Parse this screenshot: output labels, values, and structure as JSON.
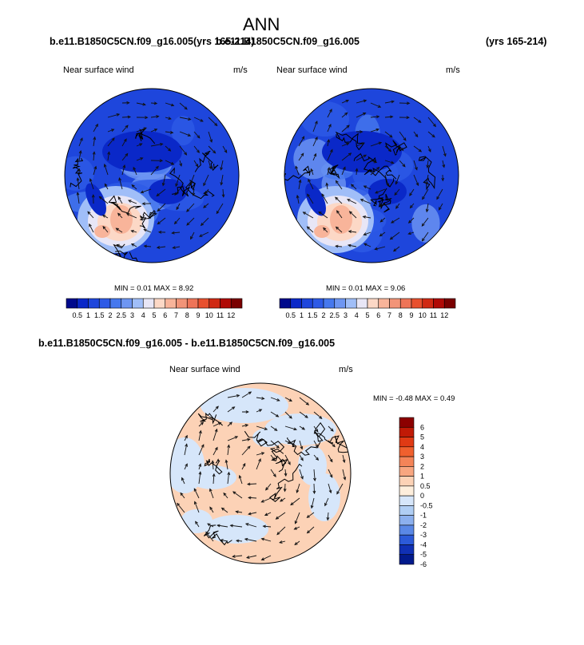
{
  "page": {
    "title": "ANN",
    "case1_label": "b.e11.B1850C5CN.f09_g16.005",
    "case1_years": "(yrs 165-214)",
    "case2_label": "b.e11.B1850C5CN.f09_g16.005",
    "case2_years": "(yrs 165-214)",
    "diff_label": "b.e11.B1850C5CN.f09_g16.005 - b.e11.B1850C5CN.f09_g16.005"
  },
  "chart_data": [
    {
      "type": "polar-contour-map",
      "field": "Near surface wind",
      "units": "m/s",
      "min_text": "MIN =  0.01 MAX =  8.92",
      "min": 0.01,
      "max": 8.92,
      "levels": [
        "0.5",
        "1",
        "1.5",
        "2",
        "2.5",
        "3",
        "4",
        "5",
        "6",
        "7",
        "8",
        "9",
        "10",
        "11",
        "12"
      ],
      "colors": [
        "#000a8c",
        "#0a28c8",
        "#1e46dc",
        "#2d5ae6",
        "#4678ee",
        "#6e96f2",
        "#a0bef8",
        "#e8e6f6",
        "#fcd8c6",
        "#f8b49a",
        "#f29478",
        "#ee7458",
        "#e8502e",
        "#d02a14",
        "#b00a06",
        "#7a0000"
      ]
    },
    {
      "type": "polar-contour-map",
      "field": "Near surface wind",
      "units": "m/s",
      "min_text": "MIN =  0.01 MAX =  9.06",
      "min": 0.01,
      "max": 9.06,
      "levels": [
        "0.5",
        "1",
        "1.5",
        "2",
        "2.5",
        "3",
        "4",
        "5",
        "6",
        "7",
        "8",
        "9",
        "10",
        "11",
        "12"
      ],
      "colors": [
        "#000a8c",
        "#0a28c8",
        "#1e46dc",
        "#2d5ae6",
        "#4678ee",
        "#6e96f2",
        "#a0bef8",
        "#e8e6f6",
        "#fcd8c6",
        "#f8b49a",
        "#f29478",
        "#ee7458",
        "#e8502e",
        "#d02a14",
        "#b00a06",
        "#7a0000"
      ]
    },
    {
      "type": "polar-contour-map",
      "field": "Near surface wind",
      "units": "m/s",
      "min_text": "MIN =  -0.48 MAX =  0.49",
      "min": -0.48,
      "max": 0.49,
      "levels": [
        "6",
        "5",
        "4",
        "3",
        "2",
        "1",
        "0.5",
        "0",
        "-0.5",
        "-1",
        "-2",
        "-3",
        "-4",
        "-5",
        "-6"
      ],
      "colors": [
        "#8c0000",
        "#c01a06",
        "#e03a14",
        "#f0602e",
        "#f48458",
        "#f8a680",
        "#fcd2b6",
        "#fdeedc",
        "#d6e6fa",
        "#b0cef4",
        "#8cb0ee",
        "#5a88e6",
        "#2c5ad8",
        "#1030b4",
        "#021a8c"
      ]
    }
  ]
}
